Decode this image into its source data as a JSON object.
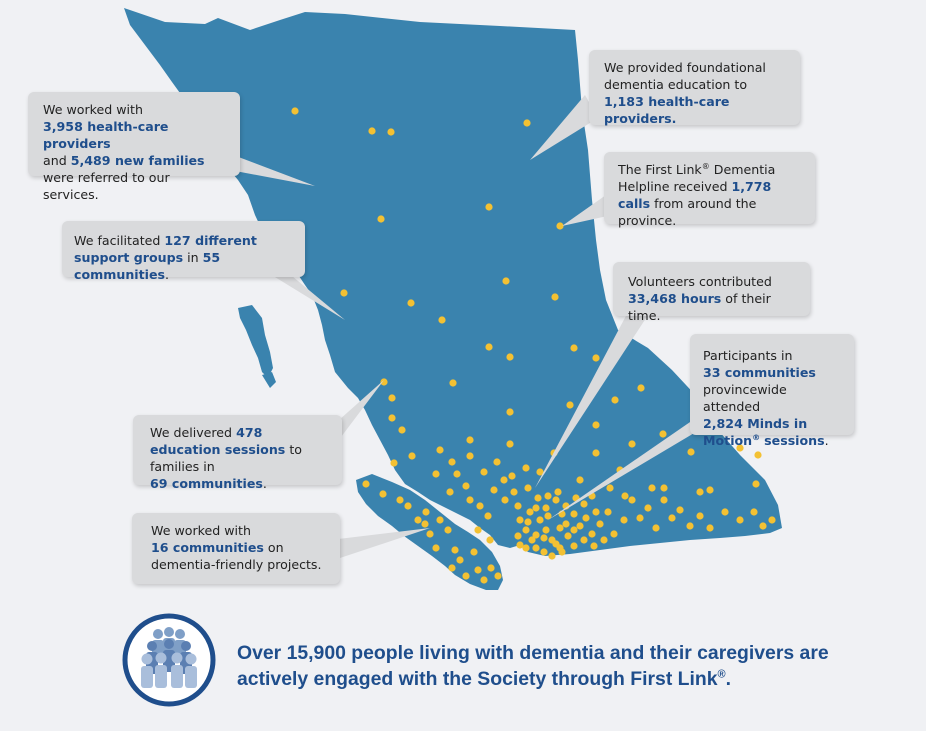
{
  "colors": {
    "background": "#f0f1f4",
    "province": "#3a83ae",
    "dot": "#f3c133",
    "callout": "#d9dadc",
    "emphasis": "#1f4e8c"
  },
  "callouts": {
    "c1": {
      "t1": "We worked with",
      "em1": "3,958 health-care providers",
      "t2": "and",
      "em2": "5,489 new families",
      "t3": "were referred to our services."
    },
    "c2": {
      "t1": "We provided foundational dementia education to",
      "em1": "1,183 health-care providers."
    },
    "c3": {
      "t1": "The First Link",
      "reg": "®",
      "t2": "Dementia Helpline received",
      "em1": "1,778 calls",
      "t3": "from around the province."
    },
    "c4": {
      "t1": "We facilitated",
      "em1": "127 different support groups",
      "t2": "in",
      "em2": "55 communities",
      "t3": "."
    },
    "c5": {
      "t1": "Volunteers contributed",
      "em1": "33,468 hours",
      "t2": "of their time."
    },
    "c6": {
      "t1": "Participants in",
      "em1": "33 communities",
      "t2": "provincewide attended",
      "em2": "2,824 Minds in Motion",
      "reg": "®",
      "em3": "sessions",
      "t3": "."
    },
    "c7": {
      "t1": "We delivered",
      "em1": "478 education sessions",
      "t2": "to families in",
      "em2": "69 communities",
      "t3": "."
    },
    "c8": {
      "t1": "We worked with",
      "em1": "16 communities",
      "t2": "on dementia-friendly projects."
    }
  },
  "tagline": {
    "t1": "Over",
    "em1": "15,900 people",
    "t2": "living with dementia and their caregivers are actively engaged with the Society through First Link",
    "reg": "®",
    "t3": "."
  },
  "logo_icon": "people-group-icon"
}
